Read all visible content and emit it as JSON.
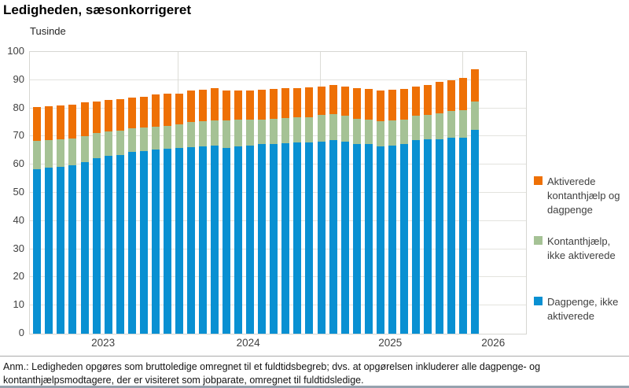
{
  "title": "Ledigheden, sæsonkorrigeret",
  "y_axis": {
    "unit_label": "Tusinde",
    "tick_values": [
      0,
      10,
      20,
      30,
      40,
      50,
      60,
      70,
      80,
      90,
      100
    ]
  },
  "x_axis": {
    "year_labels": [
      "2023",
      "2024",
      "2025",
      "2026"
    ]
  },
  "legend": {
    "items": [
      {
        "label": "Aktiverede kontanthjælp og dagpenge",
        "color": "#ee7005",
        "series_key": "aktiverede"
      },
      {
        "label": "Kontanthjælp, ikke aktiverede",
        "color": "#a5c295",
        "series_key": "kontanthjaelp"
      },
      {
        "label": "Dagpenge, ikke aktiverede",
        "color": "#0990d2",
        "series_key": "dagpenge"
      }
    ]
  },
  "note": "Anm.: Ledigheden opgøres som bruttoledige omregnet til et fuldtidsbegreb; dvs. at opgørelsen inkluderer alle dagpenge- og kontanthjælpsmodtagere, der er visiteret som jobparate, omregnet til fuldtidsledige.",
  "colors": {
    "dagpenge_blue": "#0990d2",
    "kontanthjaelp_green": "#a5c295",
    "aktiverede_orange": "#ee7005",
    "gridline": "#e3e3de"
  },
  "chart_data": {
    "type": "bar",
    "stacked": true,
    "title": "Ledigheden, sæsonkorrigeret",
    "ylabel": "Tusinde",
    "xlabel": "",
    "ylim": [
      0,
      100
    ],
    "grid": true,
    "legend_position": "right",
    "unit": "thousand full-time unemployed persons",
    "categories": [
      "2023-01",
      "2023-02",
      "2023-03",
      "2023-04",
      "2023-05",
      "2023-06",
      "2023-07",
      "2023-08",
      "2023-09",
      "2023-10",
      "2023-11",
      "2023-12",
      "2024-01",
      "2024-02",
      "2024-03",
      "2024-04",
      "2024-05",
      "2024-06",
      "2024-07",
      "2024-08",
      "2024-09",
      "2024-10",
      "2024-11",
      "2024-12",
      "2025-01",
      "2025-02",
      "2025-03",
      "2025-04",
      "2025-05",
      "2025-06",
      "2025-07",
      "2025-08",
      "2025-09",
      "2025-10",
      "2025-11",
      "2025-12",
      "2026-01",
      "2026-02"
    ],
    "year_sections": [
      {
        "label": "2023",
        "months": 12
      },
      {
        "label": "2024",
        "months": 12
      },
      {
        "label": "2025",
        "months": 12
      },
      {
        "label": "2026",
        "months": 2
      }
    ],
    "series": [
      {
        "name": "Dagpenge, ikke aktiverede",
        "color": "#0990d2",
        "values": [
          58.5,
          59.0,
          59.3,
          59.8,
          60.8,
          62.2,
          63.1,
          63.5,
          64.5,
          64.8,
          65.3,
          65.6,
          66.0,
          66.2,
          66.5,
          66.8,
          66.0,
          66.4,
          66.9,
          67.2,
          67.4,
          67.6,
          67.8,
          68.0,
          68.3,
          68.7,
          68.2,
          67.4,
          67.2,
          66.4,
          66.7,
          67.2,
          68.8,
          69.0,
          69.0,
          69.5,
          69.7,
          72.3
        ]
      },
      {
        "name": "Kontanthjælp, ikke aktiverede",
        "color": "#a5c295",
        "values": [
          10.0,
          9.7,
          9.6,
          9.5,
          9.3,
          9.0,
          8.8,
          8.7,
          8.5,
          8.4,
          8.3,
          8.2,
          8.4,
          8.9,
          8.9,
          8.8,
          9.7,
          9.5,
          9.0,
          8.9,
          9.0,
          9.0,
          8.9,
          8.8,
          9.3,
          9.3,
          9.3,
          9.0,
          8.9,
          9.0,
          8.9,
          8.7,
          8.7,
          8.8,
          9.1,
          9.7,
          9.7,
          10.0
        ]
      },
      {
        "name": "Aktiverede kontanthjælp og dagpenge",
        "color": "#ee7005",
        "values": [
          12.0,
          12.0,
          12.0,
          12.0,
          11.9,
          11.2,
          11.0,
          11.2,
          10.8,
          11.0,
          11.2,
          11.3,
          10.9,
          11.2,
          11.3,
          11.6,
          10.6,
          10.3,
          10.4,
          10.5,
          10.4,
          10.5,
          10.5,
          10.6,
          10.1,
          10.2,
          10.2,
          10.9,
          10.9,
          10.9,
          10.9,
          11.1,
          10.2,
          10.6,
          11.2,
          10.9,
          11.4,
          11.6
        ]
      }
    ]
  }
}
